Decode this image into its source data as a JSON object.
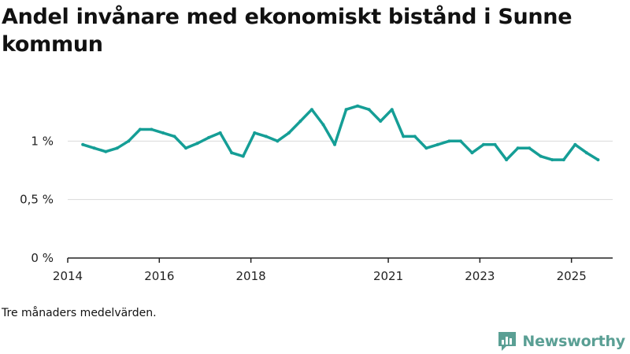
{
  "colors": {
    "line": "#159e96",
    "grid": "#d9d9d9",
    "axis": "#222222",
    "brand": "#5a9f94"
  },
  "chart_data": {
    "type": "line",
    "title": "Andel invånare med ekonomiskt bistånd i Sunne kommun",
    "note": "Tre månaders medelvärden.",
    "xlabel": "",
    "ylabel": "",
    "ylim": [
      0,
      1.5
    ],
    "xlim": [
      2014.0,
      2025.9
    ],
    "y_ticks": [
      {
        "value": 0,
        "label": "0 %"
      },
      {
        "value": 0.5,
        "label": "0,5 %"
      },
      {
        "value": 1,
        "label": "1 %"
      }
    ],
    "x_ticks": [
      {
        "value": 2014,
        "label": "2014"
      },
      {
        "value": 2016,
        "label": "2016"
      },
      {
        "value": 2018,
        "label": "2018"
      },
      {
        "value": 2021,
        "label": "2021"
      },
      {
        "value": 2023,
        "label": "2023"
      },
      {
        "value": 2025,
        "label": "2025"
      }
    ],
    "series": [
      {
        "name": "Andel invånare med ekonomiskt bistånd",
        "x": [
          2014.33,
          2014.58,
          2014.83,
          2015.08,
          2015.33,
          2015.58,
          2015.83,
          2016.08,
          2016.33,
          2016.58,
          2016.83,
          2017.08,
          2017.33,
          2017.58,
          2017.83,
          2018.08,
          2018.33,
          2018.58,
          2018.83,
          2019.08,
          2019.33,
          2019.58,
          2019.83,
          2020.08,
          2020.33,
          2020.58,
          2020.83,
          2021.08,
          2021.33,
          2021.58,
          2021.83,
          2022.08,
          2022.33,
          2022.58,
          2022.83,
          2023.08,
          2023.33,
          2023.58,
          2023.83,
          2024.08,
          2024.33,
          2024.58,
          2024.83,
          2025.08,
          2025.33,
          2025.58
        ],
        "values": [
          0.97,
          0.94,
          0.91,
          0.94,
          1.0,
          1.1,
          1.1,
          1.07,
          1.04,
          0.94,
          0.98,
          1.03,
          1.07,
          0.9,
          0.87,
          1.07,
          1.04,
          1.0,
          1.07,
          1.17,
          1.27,
          1.14,
          0.97,
          1.27,
          1.3,
          1.27,
          1.17,
          1.27,
          1.04,
          1.04,
          0.94,
          0.97,
          1.0,
          1.0,
          0.9,
          0.97,
          0.97,
          0.84,
          0.94,
          0.94,
          0.87,
          0.84,
          0.84,
          0.97,
          0.9,
          0.84
        ]
      }
    ]
  },
  "brand": {
    "name": "Newsworthy",
    "logo_icon": "newsworthy-logo-icon"
  }
}
